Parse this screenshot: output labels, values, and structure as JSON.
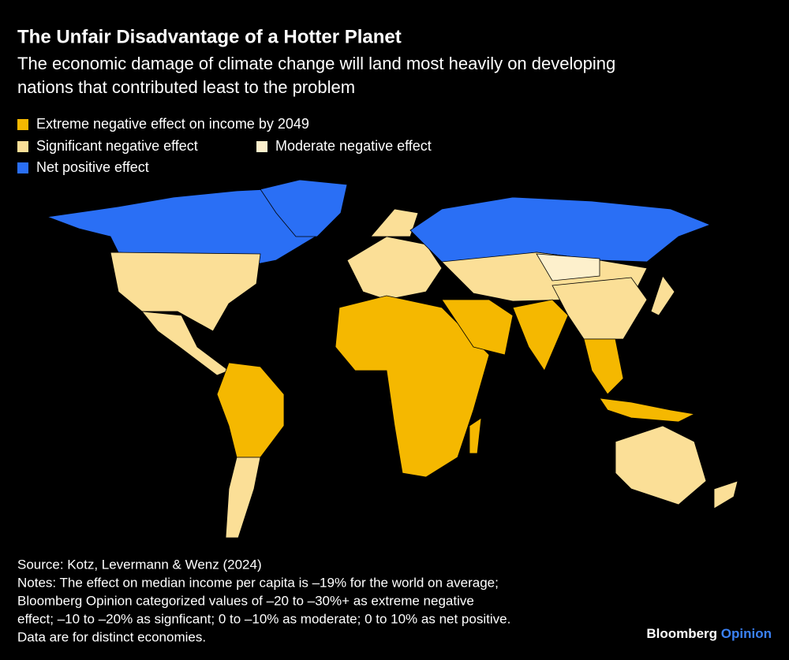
{
  "header": {
    "title": "The Unfair Disadvantage of a Hotter Planet",
    "subtitle": [
      "The economic damage of climate change will land most heavily on developing",
      "nations that contributed least to the problem"
    ]
  },
  "legend": [
    {
      "label": "Extreme negative effect on income by 2049",
      "color": "#f5b800"
    },
    {
      "label": "Significant negative effect",
      "color": "#fbdf97"
    },
    {
      "label": "Moderate negative effect",
      "color": "#fdf0cc"
    },
    {
      "label": "Net positive effect",
      "color": "#2a6ff5"
    }
  ],
  "footer": {
    "source": "Source: Kotz, Levermann & Wenz (2024)",
    "notes": [
      "Notes: The effect on median income per capita is –19% for the world on average;",
      "Bloomberg Opinion categorized values of –20 to –30%+ as extreme negative",
      "effect; –10 to –20% as signficant; 0 to –10% as moderate; 0 to 10% as net positive.",
      "Data are for distinct economies."
    ]
  },
  "brand": {
    "name": "Bloomberg",
    "product": "Opinion"
  }
}
